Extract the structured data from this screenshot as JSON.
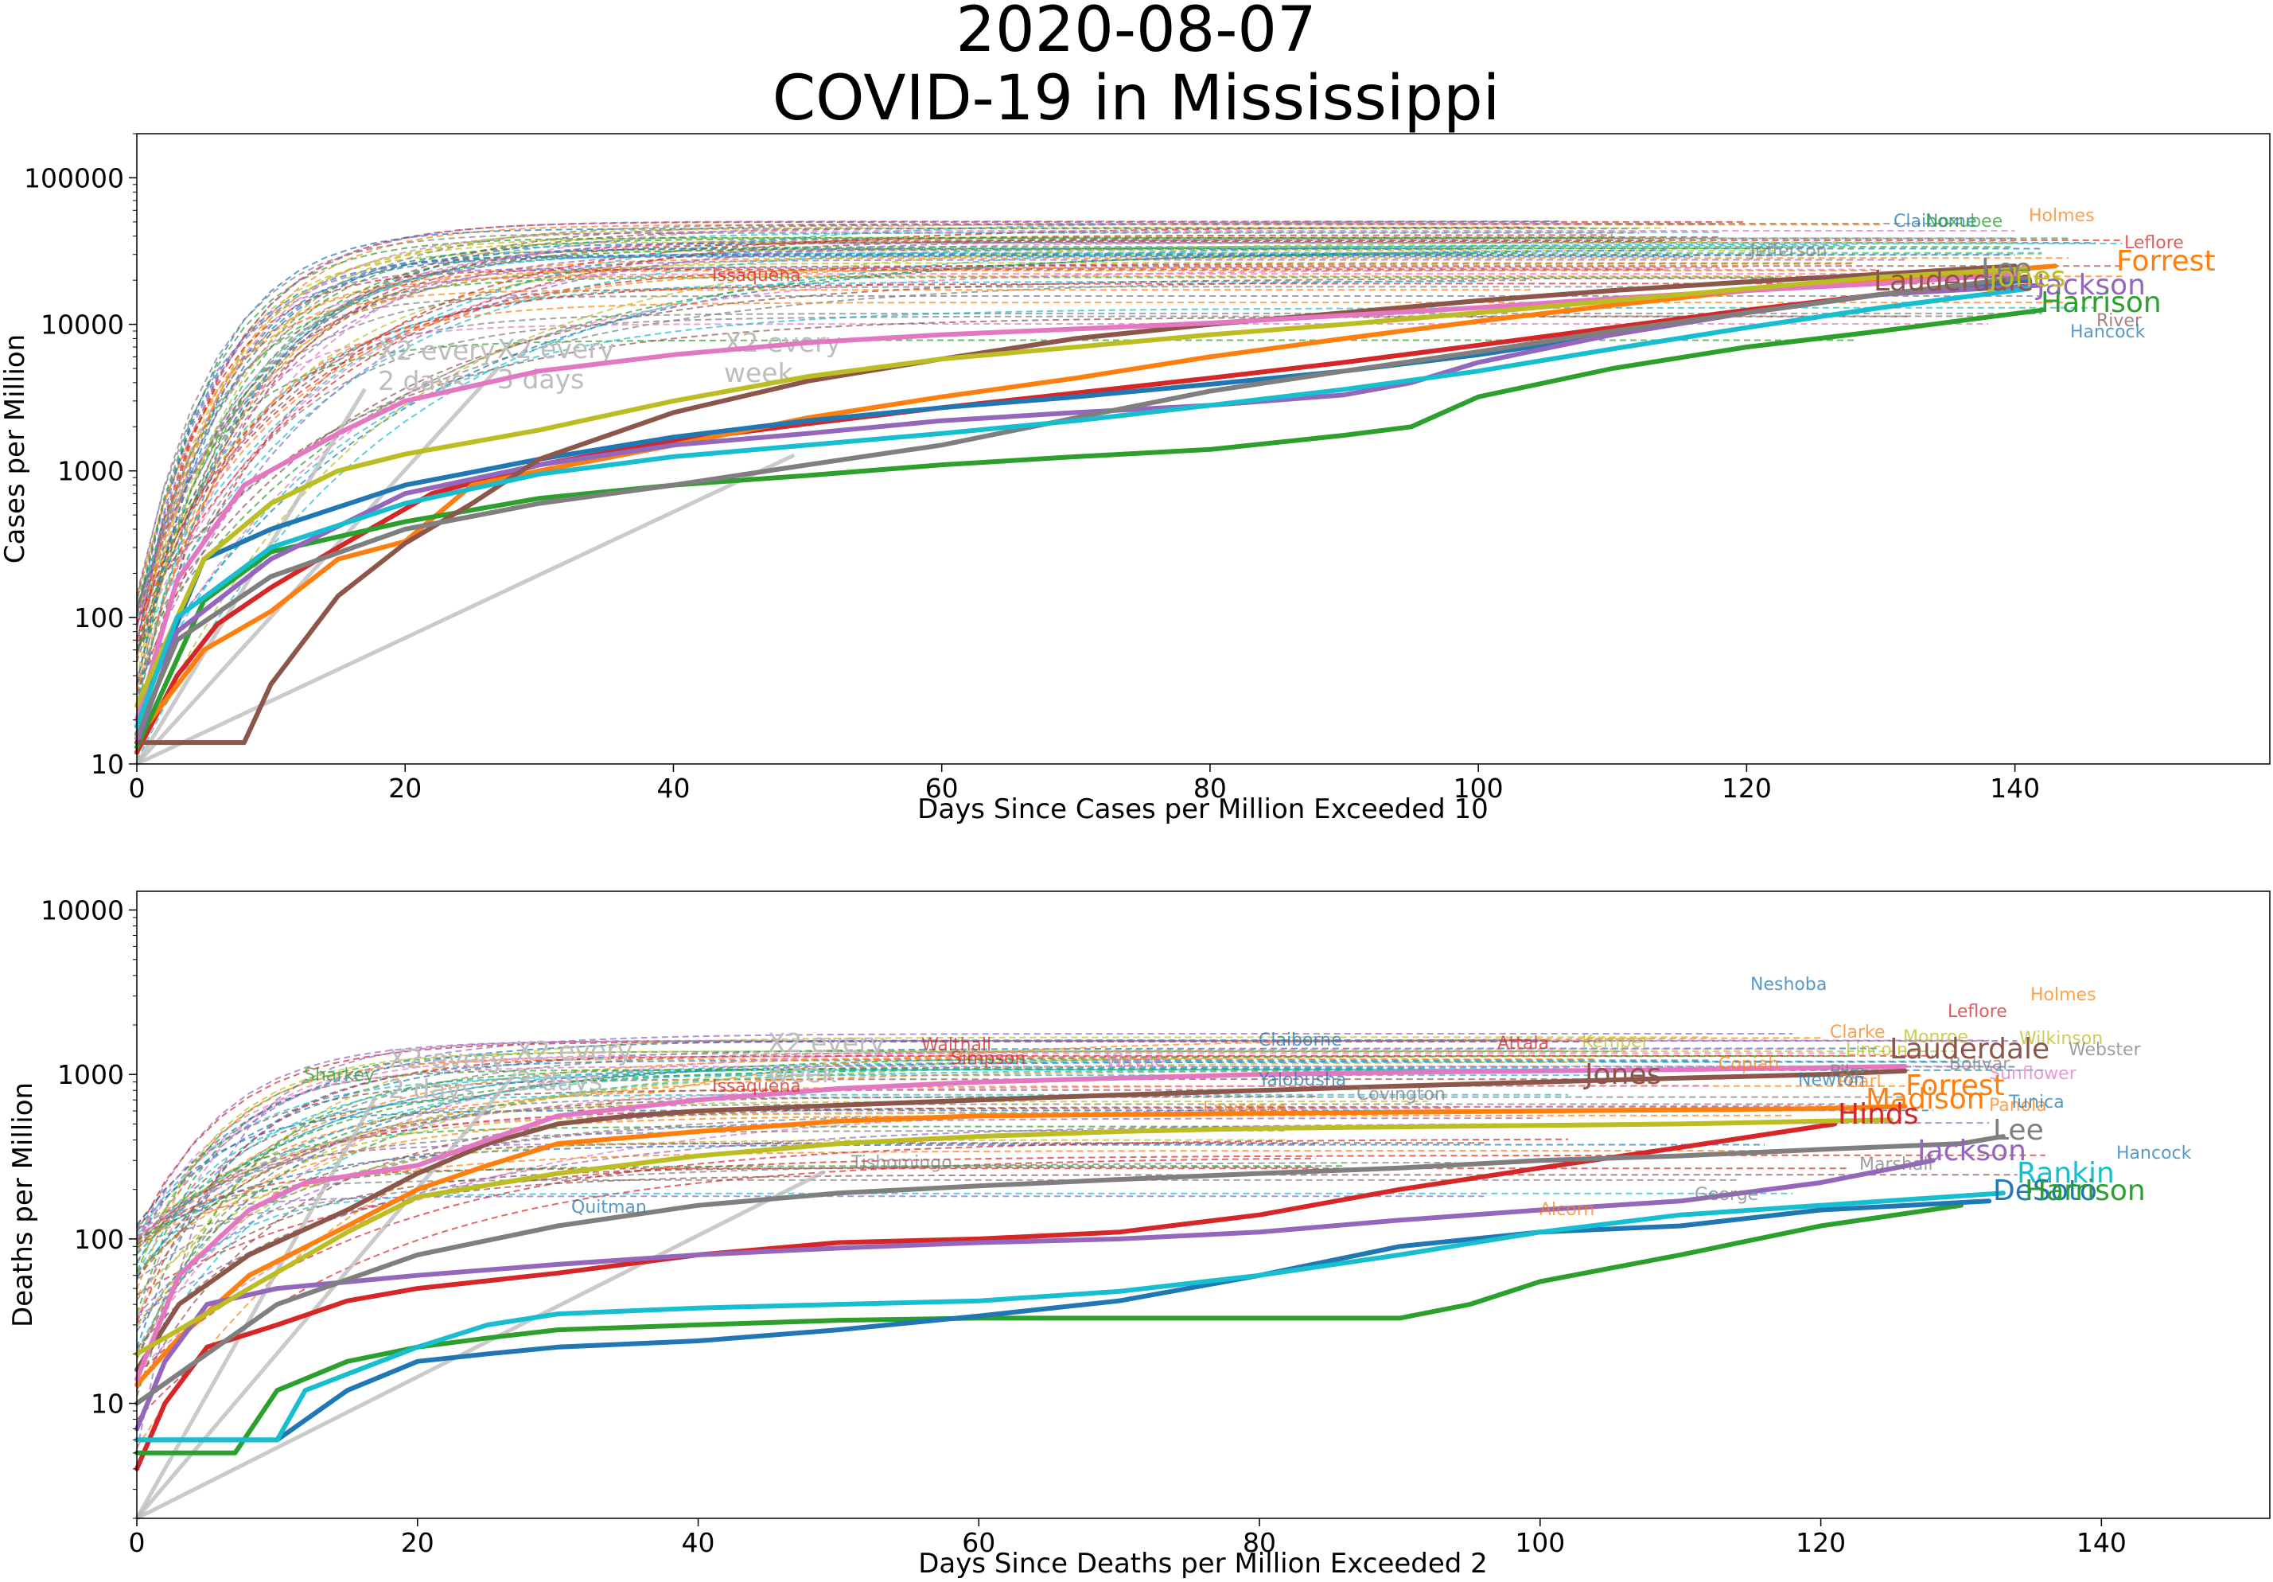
{
  "figure": {
    "date": "2020-08-07",
    "title": "COVID-19 in Mississippi"
  },
  "chart_data": [
    {
      "type": "line",
      "xlabel": "Days Since Cases per Million Exceeded 10",
      "ylabel": "Cases per Million",
      "xlim": [
        0,
        159
      ],
      "ylim": [
        10,
        200000
      ],
      "yscale": "log",
      "grid": false,
      "xticks": [
        0,
        20,
        40,
        60,
        80,
        100,
        120,
        140
      ],
      "yticks": [
        10,
        100,
        1000,
        10000,
        100000
      ],
      "ytick_labels": [
        "10",
        "100",
        "1000",
        "10000",
        "100000"
      ],
      "reference_lines": [
        {
          "label": "X2 every\n2 days",
          "x": [
            0,
            17
          ],
          "y": [
            10,
            3620
          ]
        },
        {
          "label": "X2 every\n3 days",
          "x": [
            0,
            27
          ],
          "y": [
            10,
            5120
          ]
        },
        {
          "label": "X2 every\nweek",
          "x": [
            0,
            49
          ],
          "y": [
            10,
            1280
          ]
        }
      ],
      "highlighted_series": [
        {
          "name": "Hinds",
          "color": "#d62728",
          "x": [
            0,
            3,
            6,
            10,
            15,
            22,
            30,
            40,
            50,
            60,
            70,
            80,
            90,
            100,
            110,
            120,
            130,
            136
          ],
          "y": [
            12,
            40,
            90,
            160,
            300,
            700,
            1100,
            1600,
            2100,
            2700,
            3400,
            4300,
            5500,
            7200,
            9500,
            12500,
            16000,
            18500
          ]
        },
        {
          "name": "Forrest",
          "color": "#ff7f0e",
          "x": [
            0,
            5,
            10,
            15,
            20,
            25,
            30,
            40,
            50,
            60,
            70,
            80,
            90,
            100,
            110,
            120,
            130,
            143
          ],
          "y": [
            15,
            60,
            110,
            250,
            330,
            800,
            1000,
            1500,
            2300,
            3200,
            4300,
            6000,
            8000,
            10500,
            13500,
            17000,
            20000,
            25000
          ]
        },
        {
          "name": "Harrison",
          "color": "#2ca02c",
          "x": [
            0,
            5,
            10,
            20,
            30,
            40,
            50,
            60,
            70,
            80,
            90,
            95,
            100,
            110,
            120,
            130,
            142
          ],
          "y": [
            13,
            130,
            280,
            450,
            650,
            800,
            930,
            1100,
            1250,
            1400,
            1750,
            2000,
            3200,
            5000,
            7000,
            9000,
            12500
          ]
        },
        {
          "name": "DeSoto",
          "color": "#1f77b4",
          "x": [
            0,
            5,
            10,
            20,
            30,
            40,
            50,
            60,
            70,
            80,
            90,
            100,
            110,
            120,
            130,
            141
          ],
          "y": [
            20,
            250,
            400,
            800,
            1200,
            1700,
            2200,
            2700,
            3200,
            3900,
            4800,
            6200,
            8500,
            12000,
            16000,
            20000
          ]
        },
        {
          "name": "Jackson",
          "color": "#9467bd",
          "x": [
            0,
            3,
            10,
            20,
            30,
            40,
            50,
            60,
            70,
            80,
            90,
            95,
            100,
            110,
            120,
            130,
            142
          ],
          "y": [
            14,
            80,
            250,
            700,
            1100,
            1500,
            1800,
            2200,
            2500,
            2800,
            3300,
            4000,
            5500,
            8500,
            12000,
            16000,
            18500
          ]
        },
        {
          "name": "Lauderdale",
          "color": "#8c564b",
          "x": [
            0,
            8,
            10,
            15,
            20,
            25,
            30,
            40,
            50,
            60,
            70,
            80,
            90,
            100,
            110,
            120,
            130,
            140
          ],
          "y": [
            14,
            14,
            35,
            140,
            320,
            600,
            1200,
            2500,
            4100,
            5800,
            8000,
            10000,
            12000,
            14500,
            17000,
            19500,
            22000,
            25000
          ]
        },
        {
          "name": "Madison",
          "color": "#e377c2",
          "x": [
            0,
            3,
            8,
            15,
            20,
            30,
            40,
            50,
            60,
            70,
            80,
            90,
            100,
            110,
            120,
            130,
            140
          ],
          "y": [
            20,
            180,
            800,
            1800,
            3000,
            4800,
            6200,
            7500,
            8500,
            9300,
            10200,
            11500,
            13000,
            15000,
            17000,
            19000,
            22000
          ]
        },
        {
          "name": "Lee",
          "color": "#7f7f7f",
          "x": [
            0,
            3,
            10,
            20,
            30,
            40,
            50,
            60,
            70,
            80,
            90,
            100,
            110,
            120,
            130,
            141
          ],
          "y": [
            16,
            70,
            190,
            400,
            600,
            800,
            1100,
            1500,
            2300,
            3500,
            4800,
            6500,
            9000,
            12000,
            16000,
            21000
          ]
        },
        {
          "name": "Jones",
          "color": "#bcbd22",
          "x": [
            0,
            5,
            10,
            15,
            20,
            30,
            40,
            50,
            60,
            70,
            80,
            90,
            100,
            110,
            120,
            130,
            141
          ],
          "y": [
            25,
            250,
            600,
            1000,
            1300,
            1900,
            3000,
            4400,
            5800,
            7000,
            8500,
            10000,
            12000,
            14500,
            17500,
            21000,
            24000
          ]
        },
        {
          "name": "Rankin",
          "color": "#17becf",
          "x": [
            0,
            3,
            10,
            20,
            30,
            40,
            50,
            60,
            70,
            80,
            90,
            100,
            110,
            120,
            130,
            141
          ],
          "y": [
            18,
            100,
            300,
            600,
            950,
            1250,
            1500,
            1800,
            2200,
            2800,
            3600,
            4800,
            6800,
            9500,
            13000,
            17500
          ]
        }
      ],
      "text_labels": [
        "Claiborne",
        "Noxubee",
        "Holmes",
        "Leflore",
        "Issaquena",
        "Jefferson",
        "Forrest",
        "Jackson",
        "Harrison",
        "River",
        "Hancock",
        "Lauderdale",
        "Lee",
        "Jones"
      ]
    },
    {
      "type": "line",
      "xlabel": "Days Since Deaths per Million Exceeded 2",
      "ylabel": "Deaths per Million",
      "xlim": [
        0,
        152
      ],
      "ylim": [
        2,
        13000
      ],
      "yscale": "log",
      "grid": false,
      "xticks": [
        0,
        20,
        40,
        60,
        80,
        100,
        120,
        140
      ],
      "yticks": [
        10,
        100,
        1000,
        10000
      ],
      "ytick_labels": [
        "10",
        "100",
        "1000",
        "10000"
      ],
      "reference_lines": [
        {
          "label": "X2 every\n2 days",
          "x": [
            0,
            17
          ],
          "y": [
            2,
            724
          ]
        },
        {
          "label": "X2 every\n3 days",
          "x": [
            0,
            27
          ],
          "y": [
            2,
            1020
          ]
        },
        {
          "label": "X2 every\nweek",
          "x": [
            0,
            49
          ],
          "y": [
            2,
            256
          ]
        }
      ],
      "highlighted_series": [
        {
          "name": "Hinds",
          "color": "#d62728",
          "x": [
            0,
            2,
            5,
            10,
            15,
            20,
            30,
            40,
            50,
            60,
            70,
            80,
            90,
            100,
            110,
            121
          ],
          "y": [
            4,
            10,
            22,
            30,
            42,
            50,
            62,
            80,
            95,
            100,
            110,
            140,
            200,
            270,
            360,
            500
          ]
        },
        {
          "name": "Forrest",
          "color": "#ff7f0e",
          "x": [
            0,
            3,
            8,
            15,
            20,
            25,
            30,
            40,
            50,
            60,
            70,
            80,
            90,
            100,
            110,
            120,
            126
          ],
          "y": [
            13,
            25,
            60,
            120,
            200,
            280,
            380,
            450,
            520,
            560,
            570,
            580,
            590,
            600,
            610,
            620,
            640
          ]
        },
        {
          "name": "Harrison",
          "color": "#2ca02c",
          "x": [
            0,
            7,
            10,
            15,
            20,
            25,
            30,
            40,
            50,
            60,
            70,
            80,
            90,
            95,
            100,
            110,
            120,
            130
          ],
          "y": [
            5,
            5,
            12,
            18,
            22,
            25,
            28,
            30,
            32,
            33,
            33,
            33,
            33,
            40,
            55,
            80,
            120,
            160
          ]
        },
        {
          "name": "DeSoto",
          "color": "#1f77b4",
          "x": [
            0,
            10,
            15,
            20,
            25,
            30,
            40,
            50,
            60,
            70,
            80,
            90,
            100,
            110,
            120,
            132
          ],
          "y": [
            6,
            6,
            12,
            18,
            20,
            22,
            24,
            28,
            34,
            42,
            60,
            90,
            110,
            120,
            150,
            170
          ]
        },
        {
          "name": "Jackson",
          "color": "#9467bd",
          "x": [
            0,
            2,
            5,
            10,
            20,
            30,
            40,
            50,
            60,
            70,
            80,
            90,
            100,
            110,
            120,
            128
          ],
          "y": [
            7,
            18,
            40,
            50,
            60,
            70,
            80,
            88,
            95,
            100,
            110,
            130,
            150,
            170,
            220,
            300
          ]
        },
        {
          "name": "Lauderdale",
          "color": "#8c564b",
          "x": [
            0,
            3,
            8,
            15,
            20,
            25,
            30,
            35,
            40,
            50,
            60,
            70,
            80,
            90,
            100,
            110,
            120,
            126
          ],
          "y": [
            16,
            40,
            80,
            150,
            250,
            380,
            500,
            560,
            600,
            650,
            700,
            750,
            800,
            850,
            900,
            950,
            1000,
            1050
          ]
        },
        {
          "name": "Madison",
          "color": "#e377c2",
          "x": [
            0,
            3,
            8,
            12,
            20,
            25,
            30,
            40,
            50,
            60,
            70,
            80,
            90,
            100,
            110,
            120,
            126
          ],
          "y": [
            14,
            60,
            150,
            220,
            280,
            400,
            560,
            700,
            820,
            900,
            950,
            1000,
            1030,
            1050,
            1070,
            1100,
            1120
          ]
        },
        {
          "name": "Lee",
          "color": "#7f7f7f",
          "x": [
            0,
            5,
            10,
            20,
            30,
            40,
            50,
            60,
            70,
            80,
            90,
            100,
            110,
            120,
            130,
            133
          ],
          "y": [
            10,
            20,
            40,
            80,
            120,
            160,
            190,
            210,
            230,
            250,
            270,
            300,
            320,
            350,
            380,
            420
          ]
        },
        {
          "name": "Jones",
          "color": "#bcbd22",
          "x": [
            0,
            3,
            8,
            15,
            20,
            30,
            40,
            50,
            60,
            70,
            80,
            90,
            100,
            110,
            120,
            125
          ],
          "y": [
            20,
            28,
            50,
            110,
            180,
            250,
            320,
            380,
            420,
            450,
            470,
            480,
            490,
            500,
            520,
            530
          ]
        },
        {
          "name": "Rankin",
          "color": "#17becf",
          "x": [
            0,
            5,
            10,
            12,
            20,
            25,
            30,
            40,
            50,
            60,
            70,
            80,
            90,
            100,
            110,
            120,
            133
          ],
          "y": [
            6,
            6,
            6,
            12,
            22,
            30,
            35,
            38,
            40,
            42,
            48,
            60,
            80,
            110,
            140,
            160,
            190
          ]
        }
      ],
      "text_labels": [
        "Neshoba",
        "Holmes",
        "Leflore",
        "Wilkinson",
        "Webster",
        "Sunflower",
        "Claiborne",
        "Attala",
        "Kemper",
        "Walthall",
        "Simpson",
        "Wayne",
        "Sharkey",
        "Issaquena",
        "Yalobusha",
        "Covington",
        "Lawrence",
        "Tishomingo",
        "Quitman",
        "Alcorn",
        "George",
        "Hancock",
        "Marshall",
        "Panola",
        "Tunica",
        "Clarke",
        "Monroe",
        "Lincoln",
        "Copiah",
        "Pike",
        "Pearl",
        "Bolivar",
        "Newton",
        "Lauderdale",
        "Forrest",
        "Madison",
        "Hinds",
        "Lee",
        "Jackson",
        "Rankin",
        "DeSoto",
        "Harrison",
        "Jones"
      ]
    }
  ],
  "colors": {
    "tab10": [
      "#1f77b4",
      "#ff7f0e",
      "#2ca02c",
      "#d62728",
      "#9467bd",
      "#8c564b",
      "#e377c2",
      "#7f7f7f",
      "#bcbd22",
      "#17becf"
    ],
    "reference_line": "#bdbdbd",
    "axis": "#000000"
  }
}
